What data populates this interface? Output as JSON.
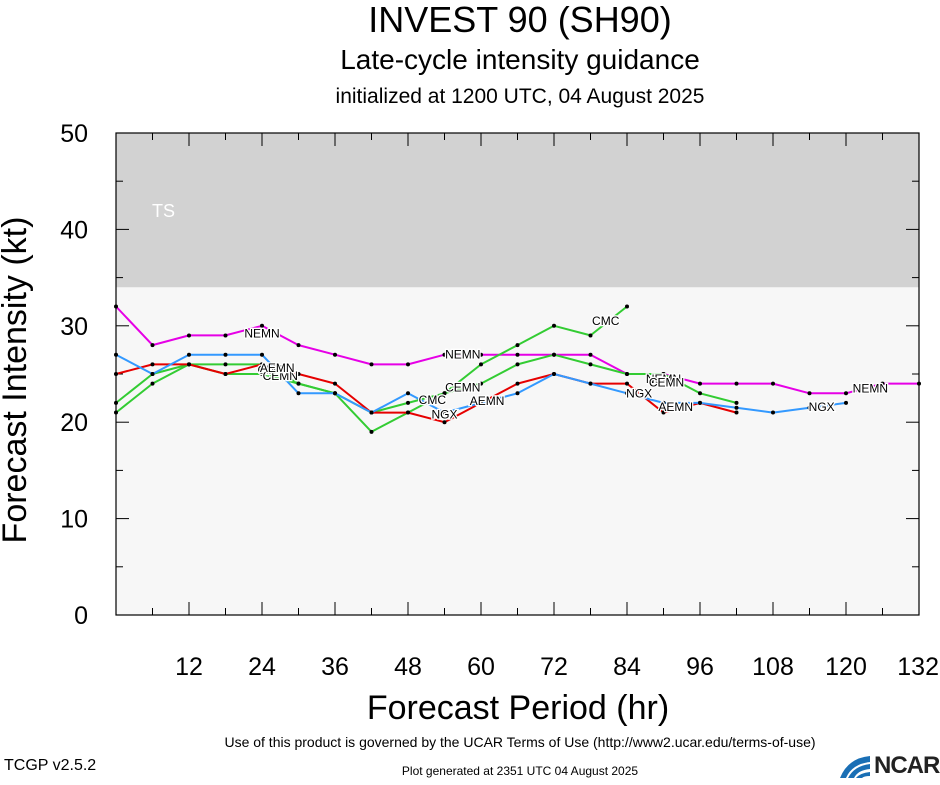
{
  "chart_data": {
    "type": "line",
    "title": "INVEST 90 (SH90)",
    "subtitle": "Late-cycle intensity guidance",
    "subtitle2": "initialized at 1200 UTC, 04 August 2025",
    "xlabel": "Forecast Period (hr)",
    "ylabel": "Forecast Intensity (kt)",
    "xlim": [
      0,
      132
    ],
    "ylim": [
      0,
      50
    ],
    "xticks": [
      "12",
      "24",
      "36",
      "48",
      "60",
      "72",
      "84",
      "96",
      "108",
      "120",
      "132"
    ],
    "yticks": [
      "0",
      "10",
      "20",
      "30",
      "40",
      "50"
    ],
    "bands": [
      {
        "label": "TS",
        "from": 34,
        "to": 50,
        "color": "#d2d2d2"
      }
    ],
    "plot_background": "#f7f7f7",
    "series": [
      {
        "name": "NEMN",
        "color": "#e600e6",
        "x": [
          0,
          6,
          12,
          18,
          24,
          30,
          36,
          42,
          48,
          54,
          60,
          66,
          72,
          78,
          84,
          90,
          96,
          102,
          108,
          114,
          120,
          126,
          132
        ],
        "y": [
          32,
          28,
          29,
          29,
          30,
          28,
          27,
          26,
          26,
          27,
          27,
          27,
          27,
          27,
          25,
          25,
          24,
          24,
          24,
          23,
          23,
          24,
          24
        ]
      },
      {
        "name": "CMC",
        "color": "#33cc33",
        "x": [
          0,
          6,
          12,
          18,
          24,
          30,
          36,
          42,
          48,
          54,
          60,
          66,
          72,
          78,
          84
        ],
        "y": [
          21,
          24,
          26,
          25,
          25,
          24,
          23,
          19,
          21,
          23,
          26,
          28,
          30,
          29,
          32
        ]
      },
      {
        "name": "CEMN",
        "color": "#33cc33",
        "x": [
          0,
          6,
          12,
          18,
          24,
          30,
          36,
          42,
          48,
          54,
          60,
          66,
          72,
          78,
          84,
          90,
          96,
          102
        ],
        "y": [
          22,
          25,
          26,
          26,
          26,
          24,
          23,
          21,
          22,
          23,
          24,
          26,
          27,
          26,
          25,
          25,
          23,
          22
        ]
      },
      {
        "name": "AEMN",
        "color": "#e60000",
        "x": [
          0,
          6,
          12,
          18,
          24,
          30,
          36,
          42,
          48,
          54,
          60,
          66,
          72,
          78,
          84,
          90,
          96,
          102
        ],
        "y": [
          25,
          26,
          26,
          25,
          26,
          25,
          24,
          21,
          21,
          20,
          22,
          24,
          25,
          24,
          24,
          21,
          22,
          21
        ]
      },
      {
        "name": "NGX",
        "color": "#3399ff",
        "x": [
          0,
          6,
          12,
          18,
          24,
          30,
          36,
          42,
          48,
          54,
          60,
          66,
          72,
          78,
          84,
          90,
          96,
          102,
          108,
          114,
          120
        ],
        "y": [
          27,
          25,
          27,
          27,
          27,
          23,
          23,
          21,
          23,
          21,
          22,
          23,
          25,
          24,
          23,
          22,
          22,
          21.5,
          21,
          21.5,
          22
        ]
      }
    ],
    "labels": [
      {
        "text": "NEMN",
        "series": "NEMN",
        "x": 24,
        "y": 29.2
      },
      {
        "text": "NEMN",
        "series": "NEMN",
        "x": 57,
        "y": 27
      },
      {
        "text": "NEMN",
        "series": "NEMN",
        "x": 90,
        "y": 24.5
      },
      {
        "text": "NEMN",
        "series": "NEMN",
        "x": 124,
        "y": 23.5
      },
      {
        "text": "CMC",
        "series": "CMC",
        "x": 25.5,
        "y": 25.4
      },
      {
        "text": "CMC",
        "series": "CMC",
        "x": 52,
        "y": 22.3
      },
      {
        "text": "CMC",
        "series": "CMC",
        "x": 80.5,
        "y": 30.5
      },
      {
        "text": "CEMN",
        "series": "CEMN",
        "x": 27,
        "y": 24.8
      },
      {
        "text": "CEMN",
        "series": "CEMN",
        "x": 57,
        "y": 23.6
      },
      {
        "text": "CEMN",
        "series": "CEMN",
        "x": 90.5,
        "y": 24.1
      },
      {
        "text": "AEMN",
        "series": "AEMN",
        "x": 26.5,
        "y": 25.6
      },
      {
        "text": "AEMN",
        "series": "AEMN",
        "x": 61,
        "y": 22.2
      },
      {
        "text": "AEMN",
        "series": "AEMN",
        "x": 92,
        "y": 21.6
      },
      {
        "text": "NGX",
        "series": "NGX",
        "x": 54,
        "y": 20.8
      },
      {
        "text": "NGX",
        "series": "NGX",
        "x": 86,
        "y": 23
      },
      {
        "text": "NGX",
        "series": "NGX",
        "x": 116,
        "y": 21.6
      }
    ]
  },
  "footer": {
    "terms": "Use of this product is governed by the UCAR Terms of Use (http://www2.ucar.edu/terms-of-use)",
    "generated": "Plot generated at 2351 UTC   04 August 2025",
    "version": "TCGP v2.5.2",
    "logo": "NCAR"
  },
  "colors": {
    "logo_blue": "#1a6fb5"
  }
}
